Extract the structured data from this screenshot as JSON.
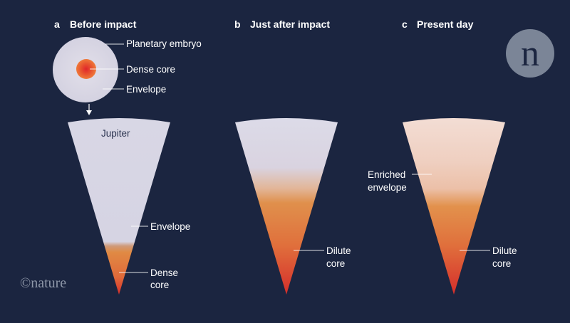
{
  "panels": [
    {
      "letter": "a",
      "title": "Before impact"
    },
    {
      "letter": "b",
      "title": "Just after impact"
    },
    {
      "letter": "c",
      "title": "Present day"
    }
  ],
  "embryo": {
    "label": "Planetary embryo",
    "core_label": "Dense core",
    "envelope_label": "Envelope"
  },
  "wedge_a": {
    "planet_label": "Jupiter",
    "envelope_label": "Envelope",
    "core_label_line1": "Dense",
    "core_label_line2": "core"
  },
  "wedge_b": {
    "core_label_line1": "Dilute",
    "core_label_line2": "core"
  },
  "wedge_c": {
    "envelope_label_line1": "Enriched",
    "envelope_label_line2": "envelope",
    "core_label_line1": "Dilute",
    "core_label_line2": "core"
  },
  "branding": {
    "wordmark": "©nature",
    "logo_letter": "n"
  },
  "colors": {
    "background": "#1b2540",
    "envelope": "#d9d8e6",
    "enriched_envelope": "#f0d3c6",
    "core_orange": "#e08a44",
    "core_red": "#d8302c"
  }
}
